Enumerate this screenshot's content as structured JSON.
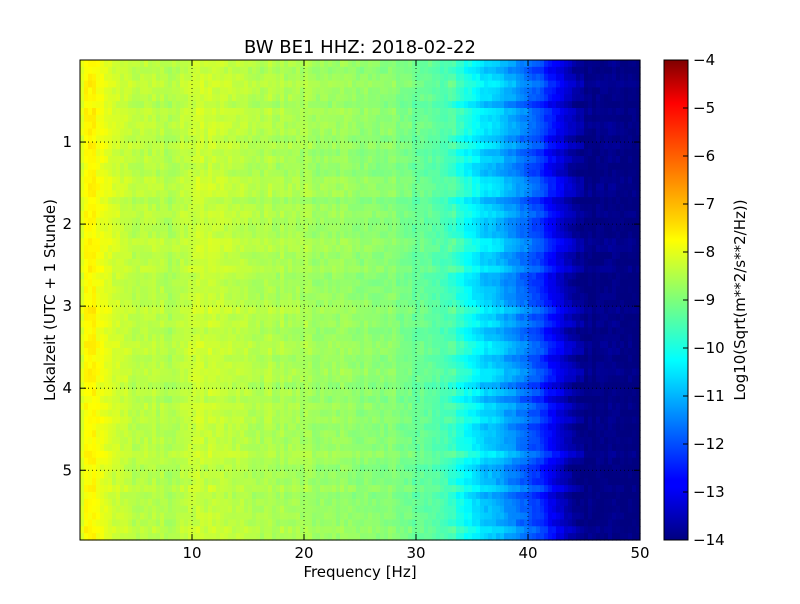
{
  "chart_data": {
    "type": "heatmap",
    "title": "BW BE1 HHZ: 2018-02-22",
    "xlabel": "Frequency [Hz]",
    "ylabel": "Lokalzeit (UTC + 1 Stunde)",
    "xlim": [
      0,
      50
    ],
    "ylim": [
      5.85,
      0
    ],
    "x_ticks": [
      10,
      20,
      30,
      40,
      50
    ],
    "y_ticks": [
      1,
      2,
      3,
      4,
      5
    ],
    "grid": true,
    "colorbar": {
      "label": "Log10(Sqrt(m**2/s**2/Hz))",
      "range": [
        -14,
        -4
      ],
      "ticks": [
        -4,
        -5,
        -6,
        -7,
        -8,
        -9,
        -10,
        -11,
        -12,
        -13,
        -14
      ],
      "colormap": "jet"
    },
    "spectrum_profile": {
      "frequency_hz": [
        0,
        0.5,
        1,
        1.5,
        3,
        5,
        8,
        10,
        13,
        16,
        20,
        25,
        28,
        30,
        32,
        33,
        34,
        35,
        36,
        37,
        38,
        39,
        40,
        41,
        42,
        43,
        44,
        45,
        50
      ],
      "log10_amplitude": [
        -8.3,
        -7.7,
        -7.6,
        -7.8,
        -8.2,
        -8.4,
        -8.5,
        -8.3,
        -8.3,
        -8.5,
        -8.6,
        -8.8,
        -8.9,
        -9.2,
        -9.4,
        -9.5,
        -9.9,
        -10.3,
        -10.6,
        -10.8,
        -11.1,
        -11.4,
        -11.7,
        -12.1,
        -12.6,
        -13.1,
        -13.6,
        -13.9,
        -14
      ]
    }
  }
}
